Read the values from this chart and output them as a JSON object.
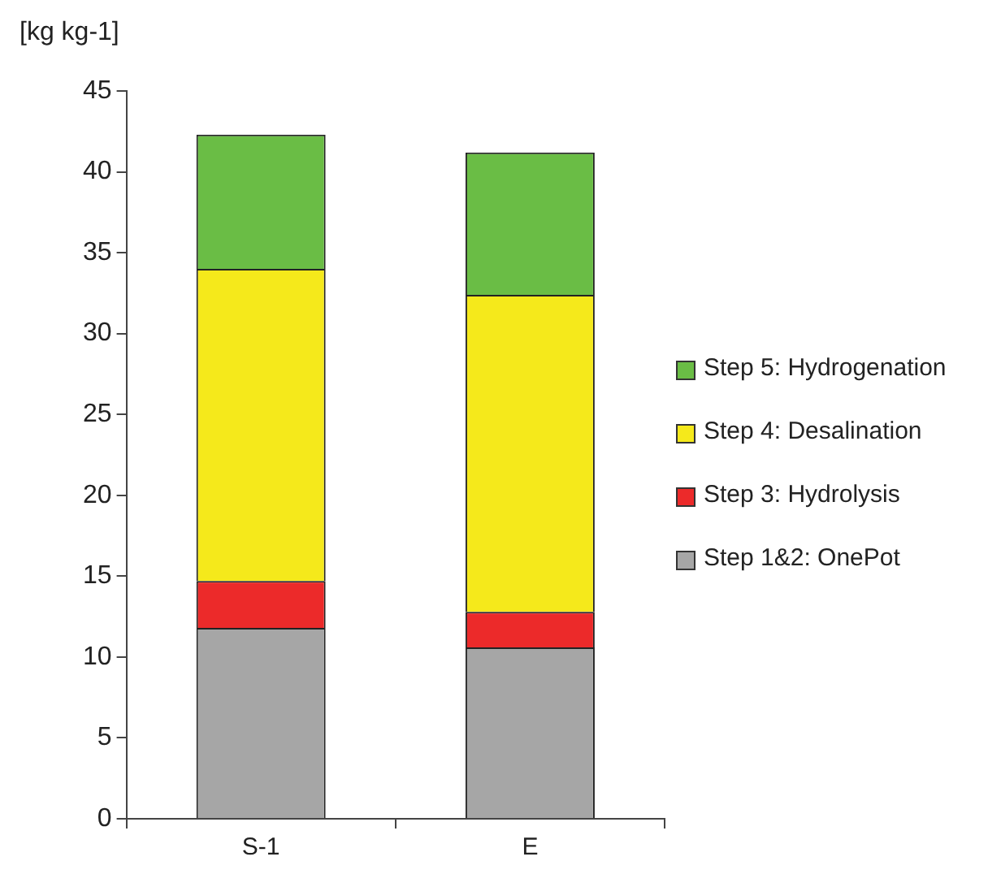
{
  "chart_data": {
    "type": "bar",
    "stacked": true,
    "ylabel": "[kg kg-1]",
    "categories": [
      "S-1",
      "E"
    ],
    "series": [
      {
        "name": "Step 1&2: OnePot",
        "color": "#a6a6a6",
        "values": [
          11.8,
          10.6
        ]
      },
      {
        "name": "Step 3: Hydrolysis",
        "color": "#ec2a2a",
        "values": [
          2.9,
          2.2
        ]
      },
      {
        "name": "Step 4: Desalination",
        "color": "#f5e91b",
        "values": [
          19.3,
          19.6
        ]
      },
      {
        "name": "Step 5: Hydrogenation",
        "color": "#6abd45",
        "values": [
          8.3,
          8.8
        ]
      }
    ],
    "ylim": [
      0,
      45
    ],
    "yticks": [
      0,
      5,
      10,
      15,
      20,
      25,
      30,
      35,
      40,
      45
    ],
    "grid": false,
    "legend": "right"
  }
}
